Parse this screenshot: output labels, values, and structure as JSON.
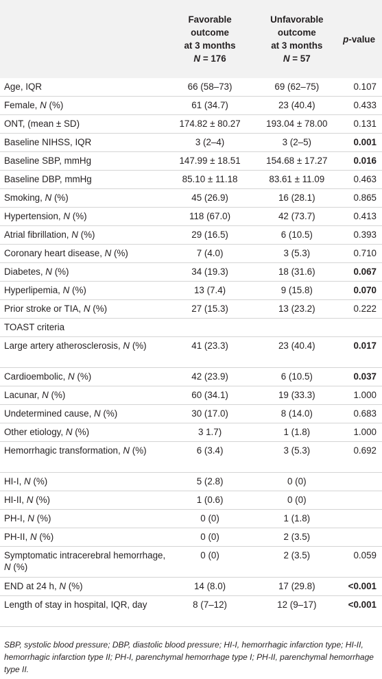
{
  "header": {
    "col_fav": [
      "Favorable",
      "outcome",
      "at 3 months"
    ],
    "col_fav_n_label": "N",
    "col_fav_n_value": " = 176",
    "col_unfav": [
      "Unfavorable",
      "outcome",
      "at 3 months"
    ],
    "col_unfav_n_label": "N",
    "col_unfav_n_value": " = 57",
    "col_p_italic": "p",
    "col_p_rest": "-value"
  },
  "rows": [
    {
      "var": "Age, IQR",
      "fav": "66 (58–73)",
      "unfav": "69 (62–75)",
      "p": "0.107",
      "bold": false
    },
    {
      "var": "Female, ",
      "var_it": "N",
      "var_suffix": " (%)",
      "fav": "61 (34.7)",
      "unfav": "23 (40.4)",
      "p": "0.433",
      "bold": false
    },
    {
      "var": "ONT, (mean ± SD)",
      "fav": "174.82 ± 80.27",
      "unfav": "193.04 ± 78.00",
      "p": "0.131",
      "bold": false
    },
    {
      "var": "Baseline NIHSS, IQR",
      "fav": "3 (2–4)",
      "unfav": "3 (2–5)",
      "p": "0.001",
      "bold": true
    },
    {
      "var": "Baseline SBP, mmHg",
      "fav": "147.99 ± 18.51",
      "unfav": "154.68 ± 17.27",
      "p": "0.016",
      "bold": true
    },
    {
      "var": "Baseline DBP, mmHg",
      "fav": "85.10 ± 11.18",
      "unfav": "83.61 ± 11.09",
      "p": "0.463",
      "bold": false
    },
    {
      "var": "Smoking, ",
      "var_it": "N",
      "var_suffix": " (%)",
      "fav": "45 (26.9)",
      "unfav": "16 (28.1)",
      "p": "0.865",
      "bold": false
    },
    {
      "var": "Hypertension, ",
      "var_it": "N",
      "var_suffix": " (%)",
      "fav": "118 (67.0)",
      "unfav": "42 (73.7)",
      "p": "0.413",
      "bold": false
    },
    {
      "var": "Atrial fibrillation, ",
      "var_it": "N",
      "var_suffix": " (%)",
      "fav": "29 (16.5)",
      "unfav": "6 (10.5)",
      "p": "0.393",
      "bold": false
    },
    {
      "var": "Coronary heart disease, ",
      "var_it": "N",
      "var_suffix": " (%)",
      "fav": "7 (4.0)",
      "unfav": "3 (5.3)",
      "p": "0.710",
      "bold": false
    },
    {
      "var": "Diabetes, ",
      "var_it": "N",
      "var_suffix": " (%)",
      "fav": "34 (19.3)",
      "unfav": "18 (31.6)",
      "p": "0.067",
      "bold": true
    },
    {
      "var": "Hyperlipemia, ",
      "var_it": "N",
      "var_suffix": " (%)",
      "fav": "13 (7.4)",
      "unfav": "9 (15.8)",
      "p": "0.070",
      "bold": true
    },
    {
      "var": "Prior stroke or TIA, ",
      "var_it": "N",
      "var_suffix": " (%)",
      "fav": "27 (15.3)",
      "unfav": "13 (23.2)",
      "p": "0.222",
      "bold": false
    },
    {
      "var": "TOAST criteria",
      "fav": "",
      "unfav": "",
      "p": "",
      "bold": false
    },
    {
      "var": "Large artery atherosclerosis, ",
      "var_it": "N",
      "var_suffix": " (%)",
      "fav": "41 (23.3)",
      "unfav": "23 (40.4)",
      "p": "0.017",
      "bold": true,
      "tall": true
    },
    {
      "var": "Cardioembolic, ",
      "var_it": "N",
      "var_suffix": " (%)",
      "fav": "42 (23.9)",
      "unfav": "6 (10.5)",
      "p": "0.037",
      "bold": true
    },
    {
      "var": "Lacunar, ",
      "var_it": "N",
      "var_suffix": " (%)",
      "fav": "60 (34.1)",
      "unfav": "19 (33.3)",
      "p": "1.000",
      "bold": false
    },
    {
      "var": "Undetermined cause, ",
      "var_it": "N",
      "var_suffix": " (%)",
      "fav": "30 (17.0)",
      "unfav": "8 (14.0)",
      "p": "0.683",
      "bold": false
    },
    {
      "var": "Other etiology, ",
      "var_it": "N",
      "var_suffix": " (%)",
      "fav": "3 1.7)",
      "unfav": "1 (1.8)",
      "p": "1.000",
      "bold": false
    },
    {
      "var": "Hemorrhagic transformation, ",
      "var_it": "N",
      "var_suffix": " (%)",
      "fav": "6 (3.4)",
      "unfav": "3 (5.3)",
      "p": "0.692",
      "bold": false,
      "tall": true
    },
    {
      "var": "HI-I, ",
      "var_it": "N",
      "var_suffix": " (%)",
      "fav": "5 (2.8)",
      "unfav": "0 (0)",
      "p": "",
      "bold": false
    },
    {
      "var": "HI-II, ",
      "var_it": "N",
      "var_suffix": " (%)",
      "fav": "1 (0.6)",
      "unfav": "0 (0)",
      "p": "",
      "bold": false
    },
    {
      "var": "PH-I, ",
      "var_it": "N",
      "var_suffix": " (%)",
      "fav": "0 (0)",
      "unfav": "1 (1.8)",
      "p": "",
      "bold": false
    },
    {
      "var": "PH-II, ",
      "var_it": "N",
      "var_suffix": " (%)",
      "fav": "0 (0)",
      "unfav": "2 (3.5)",
      "p": "",
      "bold": false
    },
    {
      "var": "Symptomatic intracerebral hemorrhage, ",
      "var_it": "N",
      "var_suffix": " (%)",
      "fav": "0 (0)",
      "unfav": "2 (3.5)",
      "p": "0.059",
      "bold": false,
      "tall": true
    },
    {
      "var": "END at 24 h, ",
      "var_it": "N",
      "var_suffix": " (%)",
      "fav": "14 (8.0)",
      "unfav": "17 (29.8)",
      "p": "<0.001",
      "bold": true
    },
    {
      "var": "Length of stay in hospital, IQR, day",
      "fav": "8 (7–12)",
      "unfav": "12 (9–17)",
      "p": "<0.001",
      "bold": true,
      "tall": true
    }
  ],
  "footnote": "SBP, systolic blood pressure; DBP, diastolic blood pressure; HI-I, hemorrhagic infarction type; HI-II, hemorrhagic infarction type II; PH-I, parenchymal hemorrhage type I; PH-II, parenchymal hemorrhage type II."
}
